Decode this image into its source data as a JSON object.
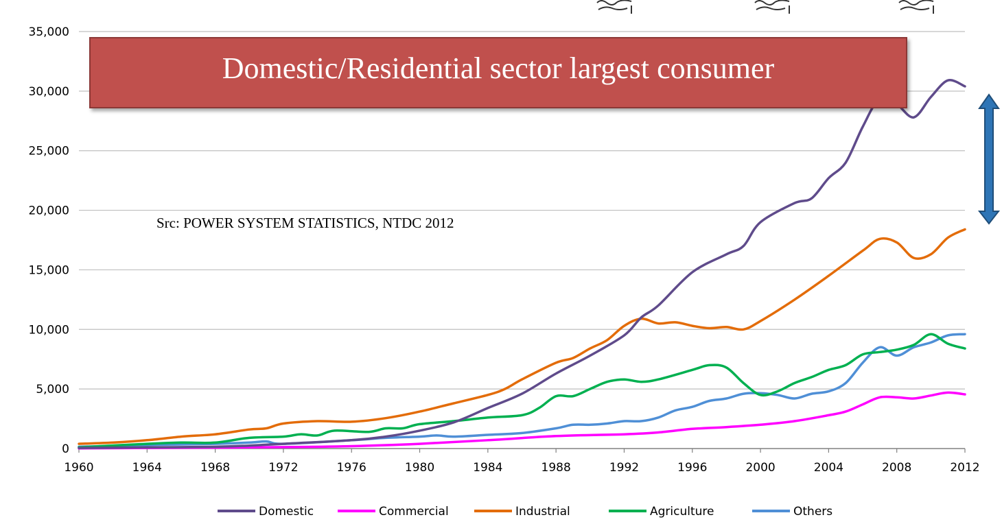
{
  "banner": {
    "text": "Domestic/Residential sector largest consumer"
  },
  "source_note": "Src: POWER SYSTEM STATISTICS, NTDC 2012",
  "colors": {
    "banner_fill": "#c0504d",
    "arrow_fill": "#2e75b6",
    "gridline": "#bfbfbf"
  },
  "icons": {
    "top_decoration": "scroll-marks-icon",
    "range_arrow": "double-arrow-icon"
  },
  "chart_data": {
    "type": "line",
    "xlim": [
      1960,
      2012
    ],
    "ylim": [
      0,
      35000
    ],
    "x_ticks": [
      "1960",
      "1964",
      "1968",
      "1972",
      "1976",
      "1980",
      "1984",
      "1988",
      "1992",
      "1996",
      "2000",
      "2004",
      "2008",
      "2012"
    ],
    "y_ticks": [
      "0",
      "5,000",
      "10,000",
      "15,000",
      "20,000",
      "25,000",
      "30,000",
      "35,000"
    ],
    "grid": true,
    "legend_position": "bottom",
    "series": [
      {
        "name": "Domestic",
        "color": "#5f4b8b",
        "points": [
          [
            1960,
            50
          ],
          [
            1964,
            100
          ],
          [
            1968,
            150
          ],
          [
            1970,
            250
          ],
          [
            1972,
            400
          ],
          [
            1976,
            700
          ],
          [
            1978,
            1000
          ],
          [
            1980,
            1500
          ],
          [
            1982,
            2200
          ],
          [
            1984,
            3400
          ],
          [
            1986,
            4600
          ],
          [
            1988,
            6300
          ],
          [
            1990,
            7800
          ],
          [
            1992,
            9500
          ],
          [
            1993,
            11000
          ],
          [
            1994,
            12000
          ],
          [
            1996,
            14800
          ],
          [
            1998,
            16300
          ],
          [
            1999,
            17000
          ],
          [
            2000,
            19000
          ],
          [
            2002,
            20600
          ],
          [
            2003,
            21000
          ],
          [
            2004,
            22700
          ],
          [
            2005,
            24000
          ],
          [
            2006,
            27000
          ],
          [
            2007,
            29400
          ],
          [
            2008,
            28900
          ],
          [
            2009,
            27800
          ],
          [
            2010,
            29500
          ],
          [
            2011,
            30900
          ],
          [
            2012,
            30400
          ]
        ]
      },
      {
        "name": "Commercial",
        "color": "#ff00ff",
        "points": [
          [
            1960,
            20
          ],
          [
            1964,
            50
          ],
          [
            1968,
            80
          ],
          [
            1972,
            120
          ],
          [
            1976,
            200
          ],
          [
            1980,
            400
          ],
          [
            1984,
            700
          ],
          [
            1988,
            1050
          ],
          [
            1992,
            1200
          ],
          [
            1994,
            1350
          ],
          [
            1996,
            1650
          ],
          [
            1998,
            1800
          ],
          [
            2000,
            2000
          ],
          [
            2002,
            2300
          ],
          [
            2004,
            2800
          ],
          [
            2005,
            3100
          ],
          [
            2006,
            3700
          ],
          [
            2007,
            4300
          ],
          [
            2008,
            4300
          ],
          [
            2009,
            4200
          ],
          [
            2010,
            4450
          ],
          [
            2011,
            4700
          ],
          [
            2012,
            4550
          ]
        ]
      },
      {
        "name": "Industrial",
        "color": "#e36c09",
        "points": [
          [
            1960,
            400
          ],
          [
            1962,
            500
          ],
          [
            1964,
            700
          ],
          [
            1966,
            1000
          ],
          [
            1968,
            1200
          ],
          [
            1970,
            1600
          ],
          [
            1971,
            1700
          ],
          [
            1972,
            2100
          ],
          [
            1974,
            2300
          ],
          [
            1976,
            2250
          ],
          [
            1978,
            2550
          ],
          [
            1980,
            3100
          ],
          [
            1982,
            3800
          ],
          [
            1984,
            4500
          ],
          [
            1985,
            5000
          ],
          [
            1986,
            5800
          ],
          [
            1988,
            7200
          ],
          [
            1989,
            7600
          ],
          [
            1990,
            8400
          ],
          [
            1991,
            9100
          ],
          [
            1992,
            10300
          ],
          [
            1993,
            10900
          ],
          [
            1994,
            10500
          ],
          [
            1995,
            10600
          ],
          [
            1996,
            10300
          ],
          [
            1997,
            10100
          ],
          [
            1998,
            10200
          ],
          [
            1999,
            10000
          ],
          [
            2000,
            10700
          ],
          [
            2002,
            12500
          ],
          [
            2004,
            14500
          ],
          [
            2006,
            16600
          ],
          [
            2007,
            17600
          ],
          [
            2008,
            17300
          ],
          [
            2009,
            16000
          ],
          [
            2010,
            16300
          ],
          [
            2011,
            17700
          ],
          [
            2012,
            18400
          ]
        ]
      },
      {
        "name": "Agriculture",
        "color": "#00b050",
        "points": [
          [
            1960,
            100
          ],
          [
            1964,
            400
          ],
          [
            1966,
            500
          ],
          [
            1968,
            500
          ],
          [
            1970,
            900
          ],
          [
            1972,
            1000
          ],
          [
            1973,
            1200
          ],
          [
            1974,
            1100
          ],
          [
            1975,
            1500
          ],
          [
            1977,
            1400
          ],
          [
            1978,
            1700
          ],
          [
            1979,
            1700
          ],
          [
            1980,
            2050
          ],
          [
            1982,
            2300
          ],
          [
            1984,
            2600
          ],
          [
            1986,
            2800
          ],
          [
            1987,
            3400
          ],
          [
            1988,
            4400
          ],
          [
            1989,
            4400
          ],
          [
            1990,
            5000
          ],
          [
            1991,
            5600
          ],
          [
            1992,
            5800
          ],
          [
            1993,
            5600
          ],
          [
            1994,
            5800
          ],
          [
            1996,
            6600
          ],
          [
            1997,
            7000
          ],
          [
            1998,
            6800
          ],
          [
            1999,
            5500
          ],
          [
            2000,
            4500
          ],
          [
            2001,
            4800
          ],
          [
            2002,
            5500
          ],
          [
            2003,
            6000
          ],
          [
            2004,
            6600
          ],
          [
            2005,
            7000
          ],
          [
            2006,
            7900
          ],
          [
            2007,
            8100
          ],
          [
            2008,
            8300
          ],
          [
            2009,
            8700
          ],
          [
            2010,
            9600
          ],
          [
            2011,
            8800
          ],
          [
            2012,
            8400
          ]
        ]
      },
      {
        "name": "Others",
        "color": "#4f8fd6",
        "points": [
          [
            1960,
            150
          ],
          [
            1964,
            300
          ],
          [
            1968,
            400
          ],
          [
            1970,
            500
          ],
          [
            1971,
            600
          ],
          [
            1972,
            400
          ],
          [
            1976,
            700
          ],
          [
            1978,
            900
          ],
          [
            1980,
            1000
          ],
          [
            1981,
            1100
          ],
          [
            1982,
            1000
          ],
          [
            1984,
            1150
          ],
          [
            1986,
            1300
          ],
          [
            1988,
            1700
          ],
          [
            1989,
            2000
          ],
          [
            1990,
            2000
          ],
          [
            1991,
            2100
          ],
          [
            1992,
            2300
          ],
          [
            1993,
            2300
          ],
          [
            1994,
            2600
          ],
          [
            1995,
            3200
          ],
          [
            1996,
            3500
          ],
          [
            1997,
            4000
          ],
          [
            1998,
            4200
          ],
          [
            1999,
            4600
          ],
          [
            2000,
            4650
          ],
          [
            2001,
            4500
          ],
          [
            2002,
            4200
          ],
          [
            2003,
            4600
          ],
          [
            2004,
            4800
          ],
          [
            2005,
            5500
          ],
          [
            2006,
            7200
          ],
          [
            2007,
            8500
          ],
          [
            2008,
            7800
          ],
          [
            2009,
            8500
          ],
          [
            2010,
            8900
          ],
          [
            2011,
            9500
          ],
          [
            2012,
            9600
          ]
        ]
      }
    ]
  }
}
